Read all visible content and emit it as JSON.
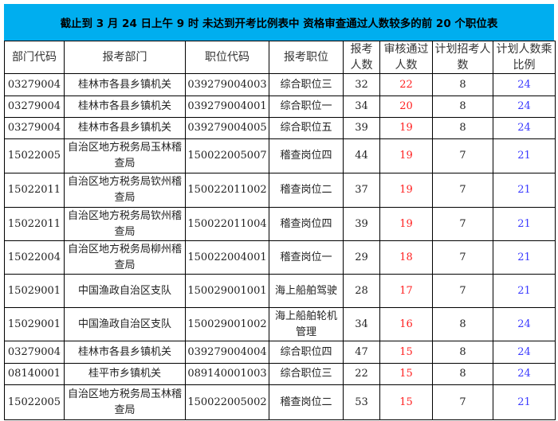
{
  "title": "截止到 3 月 24 日上午 9 时  未达到开考比例表中  资格审查通过人数较多的前 20 个职位表",
  "colors": {
    "title_bg": "#00aeef",
    "passed": "#ff2020",
    "ratio": "#3a3aff"
  },
  "headers": [
    "部门代码",
    "报考部门",
    "职位代码",
    "报考职位",
    "报考人数",
    "审核通过人数",
    "计划招考人数",
    "计划人数乘比例"
  ],
  "rows": [
    [
      "03279004",
      "桂林市各县乡镇机关",
      "039279004003",
      "综合职位三",
      "32",
      "22",
      "8",
      "24"
    ],
    [
      "03279004",
      "桂林市各县乡镇机关",
      "039279004001",
      "综合职位一",
      "34",
      "20",
      "8",
      "24"
    ],
    [
      "03279004",
      "桂林市各县乡镇机关",
      "039279004005",
      "综合职位五",
      "39",
      "19",
      "8",
      "24"
    ],
    [
      "15022005",
      "自治区地方税务局玉林稽查局",
      "150022005007",
      "稽查岗位四",
      "44",
      "19",
      "7",
      "21"
    ],
    [
      "15022011",
      "自治区地方税务局钦州稽查局",
      "150022011002",
      "稽查岗位二",
      "37",
      "19",
      "7",
      "21"
    ],
    [
      "15022011",
      "自治区地方税务局钦州稽查局",
      "150022011004",
      "稽查岗位四",
      "39",
      "19",
      "7",
      "21"
    ],
    [
      "15022004",
      "自治区地方税务局柳州稽查局",
      "150022004001",
      "稽查岗位一",
      "29",
      "18",
      "7",
      "21"
    ],
    [
      "15029001",
      "中国渔政自治区支队",
      "150029001001",
      "海上船舶驾驶",
      "28",
      "17",
      "7",
      "21"
    ],
    [
      "15029001",
      "中国渔政自治区支队",
      "150029001002",
      "海上船舶轮机管理",
      "34",
      "16",
      "8",
      "24"
    ],
    [
      "03279004",
      "桂林市各县乡镇机关",
      "039279004004",
      "综合职位四",
      "47",
      "15",
      "8",
      "24"
    ],
    [
      "08140001",
      "桂平市乡镇机关",
      "089140001003",
      "综合职位三",
      "22",
      "15",
      "8",
      "24"
    ],
    [
      "15022005",
      "自治区地方税务局玉林稽查局",
      "150022005002",
      "稽查岗位二",
      "53",
      "15",
      "7",
      "21"
    ]
  ]
}
